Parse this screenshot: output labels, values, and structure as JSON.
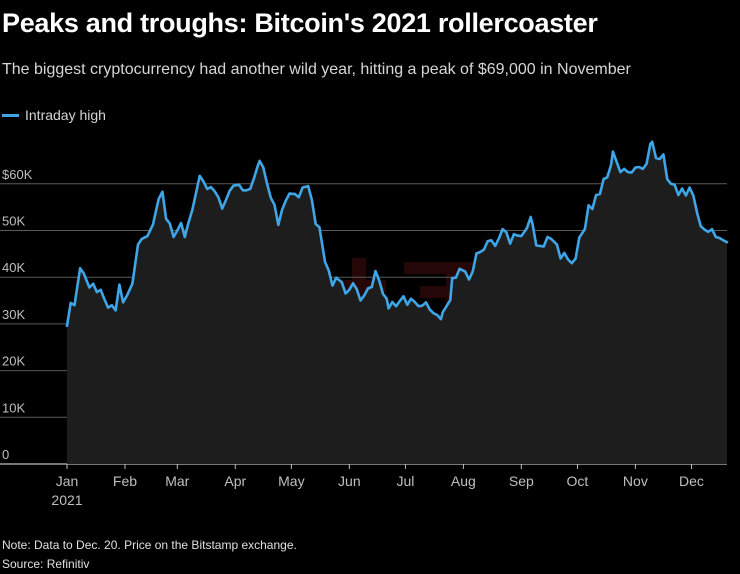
{
  "title": "Peaks and troughs: Bitcoin's 2021 rollercoaster",
  "subtitle": "The biggest cryptocurrency had another wild year, hitting a peak of $69,000 in November",
  "legend": {
    "label": "Intraday high",
    "color": "#3ea6e6"
  },
  "footer": {
    "note": "Note: Data to Dec. 20. Price on the Bitstamp exchange.",
    "source": "Source: Refinitiv"
  },
  "watermark": {
    "text": "www.mizhai.com",
    "color": "#8a1a1a"
  },
  "colors": {
    "line": "#3ea6e6",
    "grid": "#5a5a5a",
    "axis": "#bfbfbf",
    "background": "#000000"
  },
  "chart_data": {
    "type": "line",
    "title": "Peaks and troughs: Bitcoin's 2021 rollercoaster",
    "xlabel": "",
    "ylabel": "",
    "x_axis": "date",
    "xlim": [
      "2021-01-01",
      "2021-12-20"
    ],
    "ylim": [
      0,
      69000
    ],
    "grid": true,
    "legend_position": "top-left",
    "y_ticks": [
      0,
      10000,
      20000,
      30000,
      40000,
      50000,
      60000
    ],
    "y_tick_labels": [
      "0",
      "10K",
      "20K",
      "30K",
      "40K",
      "50K",
      "$60K"
    ],
    "x_tick_labels": [
      {
        "date": "2021-01-01",
        "label": "Jan",
        "sub": "2021"
      },
      {
        "date": "2021-02-01",
        "label": "Feb"
      },
      {
        "date": "2021-03-01",
        "label": "Mar"
      },
      {
        "date": "2021-04-01",
        "label": "Apr"
      },
      {
        "date": "2021-05-01",
        "label": "May"
      },
      {
        "date": "2021-06-01",
        "label": "Jun"
      },
      {
        "date": "2021-07-01",
        "label": "Jul"
      },
      {
        "date": "2021-08-01",
        "label": "Aug"
      },
      {
        "date": "2021-09-01",
        "label": "Sep"
      },
      {
        "date": "2021-10-01",
        "label": "Oct"
      },
      {
        "date": "2021-11-01",
        "label": "Nov"
      },
      {
        "date": "2021-12-01",
        "label": "Dec"
      }
    ],
    "series": [
      {
        "name": "Intraday high",
        "points": [
          [
            "2021-01-01",
            29600
          ],
          [
            "2021-01-03",
            34500
          ],
          [
            "2021-01-05",
            34000
          ],
          [
            "2021-01-08",
            41900
          ],
          [
            "2021-01-10",
            40800
          ],
          [
            "2021-01-13",
            37800
          ],
          [
            "2021-01-15",
            38600
          ],
          [
            "2021-01-17",
            36800
          ],
          [
            "2021-01-19",
            37300
          ],
          [
            "2021-01-21",
            35300
          ],
          [
            "2021-01-23",
            33500
          ],
          [
            "2021-01-25",
            34000
          ],
          [
            "2021-01-27",
            32900
          ],
          [
            "2021-01-29",
            38400
          ],
          [
            "2021-01-31",
            34600
          ],
          [
            "2021-02-02",
            36000
          ],
          [
            "2021-02-05",
            38600
          ],
          [
            "2021-02-08",
            47000
          ],
          [
            "2021-02-10",
            48200
          ],
          [
            "2021-02-13",
            48800
          ],
          [
            "2021-02-16",
            51300
          ],
          [
            "2021-02-19",
            56700
          ],
          [
            "2021-02-21",
            58300
          ],
          [
            "2021-02-23",
            52500
          ],
          [
            "2021-02-25",
            51500
          ],
          [
            "2021-02-27",
            48600
          ],
          [
            "2021-03-01",
            50000
          ],
          [
            "2021-03-03",
            51600
          ],
          [
            "2021-03-05",
            48600
          ],
          [
            "2021-03-07",
            51700
          ],
          [
            "2021-03-09",
            54400
          ],
          [
            "2021-03-11",
            58000
          ],
          [
            "2021-03-13",
            61700
          ],
          [
            "2021-03-15",
            60500
          ],
          [
            "2021-03-17",
            58900
          ],
          [
            "2021-03-19",
            59300
          ],
          [
            "2021-03-21",
            58400
          ],
          [
            "2021-03-23",
            57100
          ],
          [
            "2021-03-25",
            54700
          ],
          [
            "2021-03-27",
            56500
          ],
          [
            "2021-03-29",
            58500
          ],
          [
            "2021-03-31",
            59600
          ],
          [
            "2021-04-03",
            59800
          ],
          [
            "2021-04-05",
            58600
          ],
          [
            "2021-04-07",
            58600
          ],
          [
            "2021-04-09",
            58900
          ],
          [
            "2021-04-11",
            61200
          ],
          [
            "2021-04-13",
            63800
          ],
          [
            "2021-04-14",
            64900
          ],
          [
            "2021-04-16",
            63500
          ],
          [
            "2021-04-18",
            60000
          ],
          [
            "2021-04-20",
            57000
          ],
          [
            "2021-04-22",
            55500
          ],
          [
            "2021-04-24",
            51200
          ],
          [
            "2021-04-26",
            54400
          ],
          [
            "2021-04-28",
            56400
          ],
          [
            "2021-04-30",
            57900
          ],
          [
            "2021-05-03",
            57800
          ],
          [
            "2021-05-05",
            57100
          ],
          [
            "2021-05-07",
            59200
          ],
          [
            "2021-05-10",
            59500
          ],
          [
            "2021-05-12",
            56500
          ],
          [
            "2021-05-14",
            51400
          ],
          [
            "2021-05-16",
            50700
          ],
          [
            "2021-05-18",
            45800
          ],
          [
            "2021-05-19",
            43300
          ],
          [
            "2021-05-21",
            41400
          ],
          [
            "2021-05-23",
            38200
          ],
          [
            "2021-05-25",
            39900
          ],
          [
            "2021-05-28",
            38900
          ],
          [
            "2021-05-30",
            36500
          ],
          [
            "2021-06-01",
            37300
          ],
          [
            "2021-06-03",
            38700
          ],
          [
            "2021-06-05",
            37400
          ],
          [
            "2021-06-07",
            35000
          ],
          [
            "2021-06-09",
            36100
          ],
          [
            "2021-06-11",
            37600
          ],
          [
            "2021-06-13",
            37900
          ],
          [
            "2021-06-15",
            41300
          ],
          [
            "2021-06-17",
            39300
          ],
          [
            "2021-06-19",
            36400
          ],
          [
            "2021-06-21",
            35400
          ],
          [
            "2021-06-22",
            33300
          ],
          [
            "2021-06-24",
            34700
          ],
          [
            "2021-06-26",
            33800
          ],
          [
            "2021-06-28",
            34900
          ],
          [
            "2021-06-30",
            35900
          ],
          [
            "2021-07-02",
            34100
          ],
          [
            "2021-07-04",
            35400
          ],
          [
            "2021-07-06",
            34700
          ],
          [
            "2021-07-08",
            33800
          ],
          [
            "2021-07-10",
            33900
          ],
          [
            "2021-07-12",
            34600
          ],
          [
            "2021-07-14",
            33100
          ],
          [
            "2021-07-16",
            32300
          ],
          [
            "2021-07-18",
            31900
          ],
          [
            "2021-07-20",
            31000
          ],
          [
            "2021-07-21",
            32500
          ],
          [
            "2021-07-23",
            33800
          ],
          [
            "2021-07-25",
            35100
          ],
          [
            "2021-07-26",
            39800
          ],
          [
            "2021-07-28",
            39900
          ],
          [
            "2021-07-30",
            41800
          ],
          [
            "2021-08-02",
            41200
          ],
          [
            "2021-08-04",
            39500
          ],
          [
            "2021-08-06",
            41200
          ],
          [
            "2021-08-08",
            45100
          ],
          [
            "2021-08-10",
            45400
          ],
          [
            "2021-08-12",
            45900
          ],
          [
            "2021-08-14",
            47700
          ],
          [
            "2021-08-16",
            47900
          ],
          [
            "2021-08-18",
            46700
          ],
          [
            "2021-08-20",
            48300
          ],
          [
            "2021-08-22",
            50300
          ],
          [
            "2021-08-24",
            49600
          ],
          [
            "2021-08-26",
            47200
          ],
          [
            "2021-08-28",
            49200
          ],
          [
            "2021-08-30",
            48900
          ],
          [
            "2021-09-01",
            48800
          ],
          [
            "2021-09-04",
            50500
          ],
          [
            "2021-09-06",
            52900
          ],
          [
            "2021-09-07",
            51300
          ],
          [
            "2021-09-09",
            46800
          ],
          [
            "2021-09-11",
            46700
          ],
          [
            "2021-09-13",
            46600
          ],
          [
            "2021-09-15",
            48600
          ],
          [
            "2021-09-17",
            48200
          ],
          [
            "2021-09-20",
            47000
          ],
          [
            "2021-09-22",
            44000
          ],
          [
            "2021-09-24",
            45200
          ],
          [
            "2021-09-26",
            43800
          ],
          [
            "2021-09-28",
            43000
          ],
          [
            "2021-09-30",
            44000
          ],
          [
            "2021-10-02",
            48500
          ],
          [
            "2021-10-05",
            50300
          ],
          [
            "2021-10-07",
            55400
          ],
          [
            "2021-10-09",
            54600
          ],
          [
            "2021-10-11",
            57600
          ],
          [
            "2021-10-13",
            57800
          ],
          [
            "2021-10-15",
            61000
          ],
          [
            "2021-10-17",
            61400
          ],
          [
            "2021-10-19",
            64100
          ],
          [
            "2021-10-20",
            66900
          ],
          [
            "2021-10-22",
            64700
          ],
          [
            "2021-10-24",
            62500
          ],
          [
            "2021-10-26",
            63200
          ],
          [
            "2021-10-28",
            62500
          ],
          [
            "2021-10-30",
            62400
          ],
          [
            "2021-11-01",
            63500
          ],
          [
            "2021-11-03",
            63600
          ],
          [
            "2021-11-05",
            63200
          ],
          [
            "2021-11-07",
            64300
          ],
          [
            "2021-11-09",
            68500
          ],
          [
            "2021-11-10",
            69000
          ],
          [
            "2021-11-12",
            65500
          ],
          [
            "2021-11-14",
            65300
          ],
          [
            "2021-11-16",
            66300
          ],
          [
            "2021-11-18",
            61000
          ],
          [
            "2021-11-20",
            60000
          ],
          [
            "2021-11-22",
            59800
          ],
          [
            "2021-11-24",
            57600
          ],
          [
            "2021-11-26",
            59000
          ],
          [
            "2021-11-28",
            57500
          ],
          [
            "2021-11-30",
            59200
          ],
          [
            "2021-12-02",
            57500
          ],
          [
            "2021-12-04",
            53800
          ],
          [
            "2021-12-06",
            50900
          ],
          [
            "2021-12-08",
            50200
          ],
          [
            "2021-12-10",
            49700
          ],
          [
            "2021-12-12",
            50300
          ],
          [
            "2021-12-14",
            48600
          ],
          [
            "2021-12-16",
            48400
          ],
          [
            "2021-12-18",
            47900
          ],
          [
            "2021-12-20",
            47500
          ]
        ]
      }
    ]
  }
}
